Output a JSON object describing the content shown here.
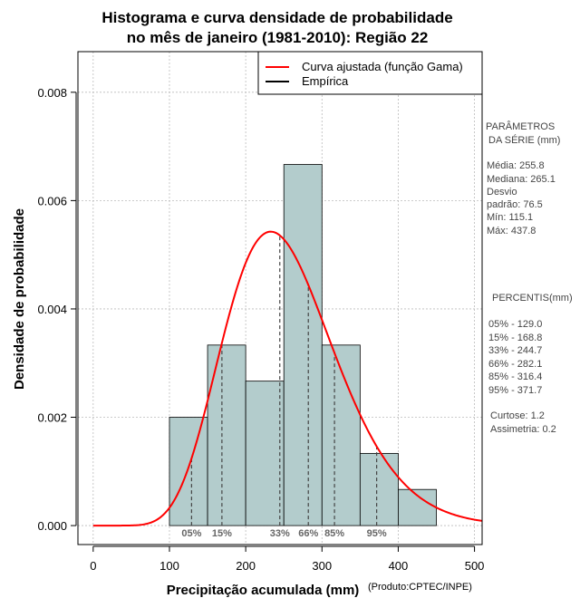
{
  "chart_data": {
    "type": "histogram",
    "title_line1": "Histograma e curva densidade de probabilidade",
    "title_line2": "no mês de janeiro (1981-2010): Região 22",
    "xlabel": "Precipitação acumulada (mm)",
    "ylabel": "Densidade de probabilidade",
    "credit": "(Produto:CPTEC/INPE)",
    "xlim": [
      -20,
      510
    ],
    "ylim": [
      -0.00035,
      0.00875
    ],
    "x_ticks": [
      0,
      100,
      200,
      300,
      400,
      500
    ],
    "y_ticks": [
      0.0,
      0.002,
      0.004,
      0.006,
      0.008
    ],
    "y_tick_labels": [
      "0.000",
      "0.002",
      "0.004",
      "0.006",
      "0.008"
    ],
    "grid": true,
    "bins": [
      {
        "start": 100,
        "end": 150,
        "density": 0.002
      },
      {
        "start": 150,
        "end": 200,
        "density": 0.003333
      },
      {
        "start": 200,
        "end": 250,
        "density": 0.002667
      },
      {
        "start": 250,
        "end": 300,
        "density": 0.006667
      },
      {
        "start": 300,
        "end": 350,
        "density": 0.003333
      },
      {
        "start": 350,
        "end": 400,
        "density": 0.001333
      },
      {
        "start": 400,
        "end": 450,
        "density": 0.000667
      }
    ],
    "gamma_fit": {
      "shape": 11.2,
      "scale": 22.83
    },
    "percentile_lines": [
      {
        "label": "05%",
        "value": 129.0
      },
      {
        "label": "15%",
        "value": 168.8
      },
      {
        "label": "33%",
        "value": 244.7
      },
      {
        "label": "66%",
        "value": 282.1
      },
      {
        "label": "85%",
        "value": 316.4
      },
      {
        "label": "95%",
        "value": 371.7
      }
    ],
    "legend": {
      "position": "top-right",
      "entries": [
        {
          "label": "Curva ajustada (função Gama)",
          "color": "#ff0000"
        },
        {
          "label": "Empírica",
          "color": "#000000"
        }
      ]
    },
    "colors": {
      "bar_fill": "#b3cccc",
      "curve": "#ff0000",
      "grid": "#bbbbbb"
    }
  },
  "side_panel": {
    "params_title_1": "PARÂMETROS",
    "params_title_2": "DA SÉRIE (mm)",
    "media": "Média:  255.8",
    "mediana": "Mediana:  265.1",
    "desvio_1": "Desvio",
    "desvio_2": "padrão:  76.5",
    "min": "Mín:  115.1",
    "max": "Máx:  437.8",
    "percentis_title": "PERCENTIS(mm)",
    "p05": "05% -  129.0",
    "p15": "15% -  168.8",
    "p33": "33% -  244.7",
    "p66": "66% -  282.1",
    "p85": "85% -  316.4",
    "p95": "95% -  371.7",
    "curtose": "Curtose:  1.2",
    "assimetria": "Assimetria:  0.2"
  }
}
